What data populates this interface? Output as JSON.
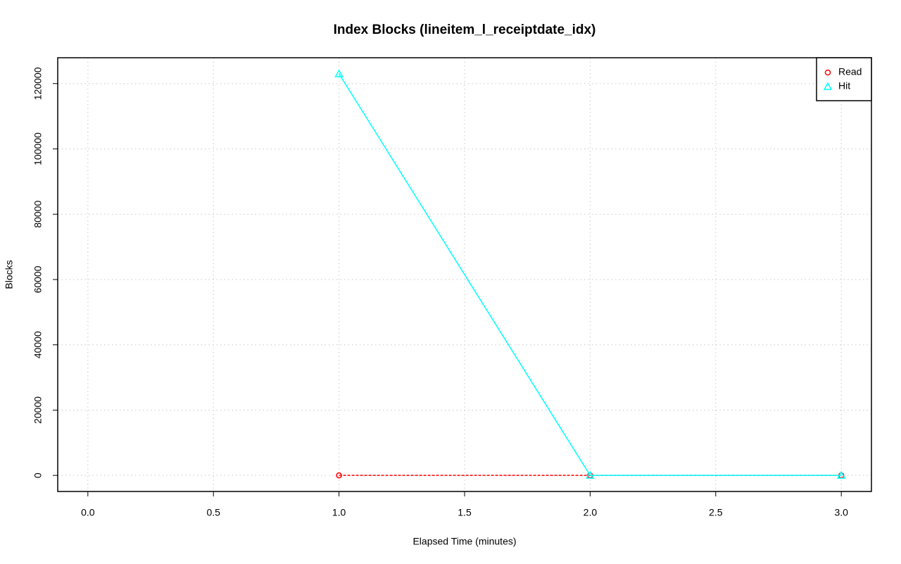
{
  "chart_data": {
    "type": "line",
    "title": "Index Blocks (lineitem_l_receiptdate_idx)",
    "x_label": "Elapsed Time (minutes)",
    "y_label": "Blocks",
    "x": [
      1,
      2,
      3
    ],
    "series": [
      {
        "name": "Read",
        "color": "#ff0000",
        "marker": "circle",
        "linestyle": "dashed",
        "values": [
          0,
          0,
          0
        ]
      },
      {
        "name": "Hit",
        "color": "#00ffff",
        "marker": "triangle",
        "linestyle": "solid",
        "values": [
          123000,
          0,
          0
        ]
      }
    ],
    "xlim": [
      -0.12,
      3.12
    ],
    "ylim": [
      -4920,
      127920
    ],
    "xticks": [
      {
        "value": 0,
        "label": "0.0"
      },
      {
        "value": 0.5,
        "label": "0.5"
      },
      {
        "value": 1,
        "label": "1.0"
      },
      {
        "value": 1.5,
        "label": "1.5"
      },
      {
        "value": 2,
        "label": "2.0"
      },
      {
        "value": 2.5,
        "label": "2.5"
      },
      {
        "value": 3,
        "label": "3.0"
      }
    ],
    "yticks": [
      0,
      20000,
      40000,
      60000,
      80000,
      100000,
      120000
    ],
    "grid": true,
    "legend": "top-right"
  }
}
